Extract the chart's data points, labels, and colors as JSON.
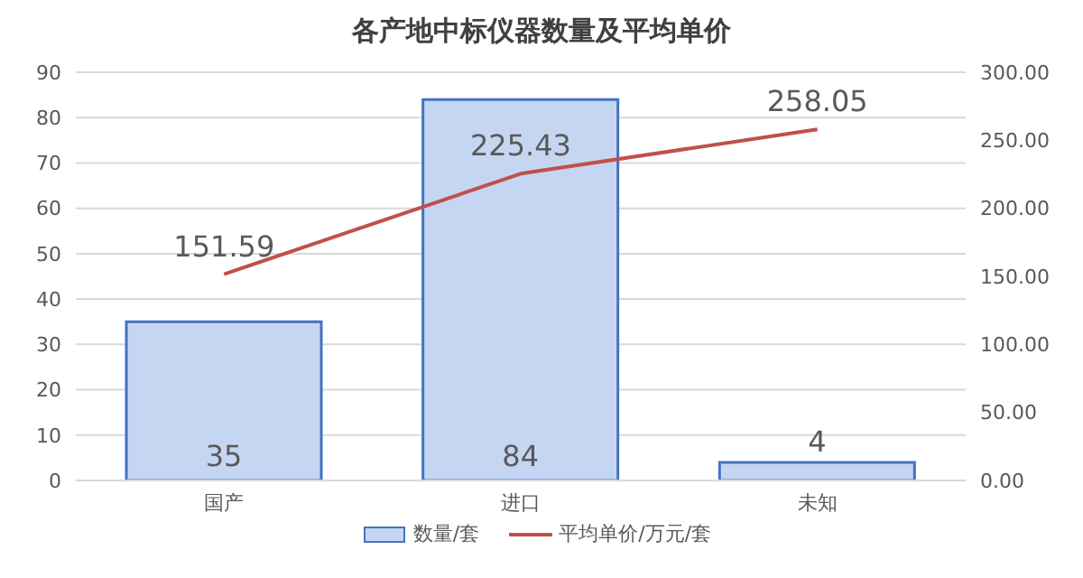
{
  "chart_data": {
    "type": "bar",
    "title": "各产地中标仪器数量及平均单价",
    "categories": [
      "国产",
      "进口",
      "未知"
    ],
    "series": [
      {
        "name": "数量/套",
        "color": "#c5d6f2",
        "values": [
          35,
          84,
          4
        ]
      },
      {
        "name": "平均单价/万元/套",
        "type": "line",
        "axis": "y2",
        "color": "#c0504d",
        "values": [
          151.59,
          225.43,
          258.05
        ]
      }
    ],
    "ylim": [
      0,
      90
    ],
    "yticks": [
      0,
      10,
      20,
      30,
      40,
      50,
      60,
      70,
      80,
      90
    ],
    "y2lim": [
      0,
      300
    ],
    "y2ticks": [
      {
        "value": 0,
        "label": "0.00"
      },
      {
        "value": 50,
        "label": "50.00"
      },
      {
        "value": 100,
        "label": "100.00"
      },
      {
        "value": 150,
        "label": "150.00"
      },
      {
        "value": 200,
        "label": "200.00"
      },
      {
        "value": 250,
        "label": "250.00"
      },
      {
        "value": 300,
        "label": "300.00"
      }
    ],
    "grid": "y",
    "legend": "bottom",
    "data_labels": true,
    "marker": "none"
  }
}
